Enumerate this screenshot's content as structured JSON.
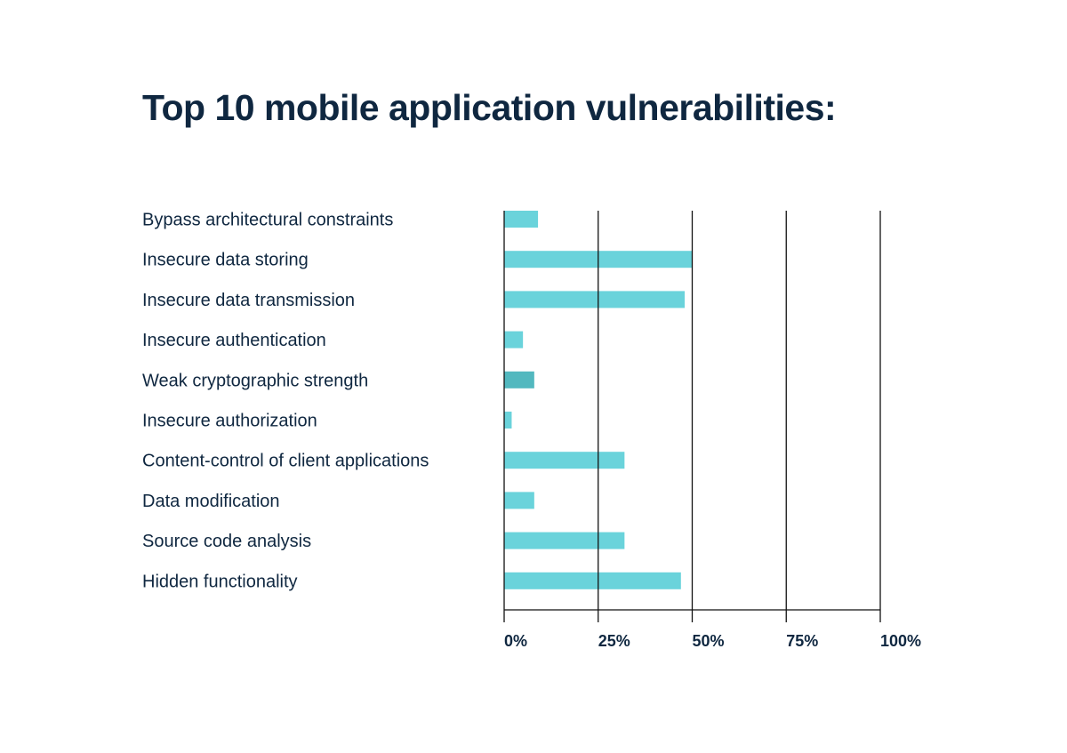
{
  "chart_data": {
    "type": "bar",
    "orientation": "horizontal",
    "title": "Top 10 mobile application vulnerabilities:",
    "xlabel": "",
    "ylabel": "",
    "categories": [
      "Bypass architectural constraints",
      "Insecure data storing",
      "Insecure data transmission",
      "Insecure authentication",
      "Weak cryptographic strength",
      "Insecure authorization",
      "Content-control of client applications",
      "Data modification",
      "Source code analysis",
      "Hidden functionality"
    ],
    "values": [
      9,
      50,
      48,
      5,
      8,
      2,
      32,
      8,
      32,
      47
    ],
    "bar_colors": [
      "#6AD3DB",
      "#6AD3DB",
      "#6AD3DB",
      "#6AD3DB",
      "#52B8BF",
      "#6AD3DB",
      "#6AD3DB",
      "#6AD3DB",
      "#6AD3DB",
      "#6AD3DB"
    ],
    "xlim": [
      0,
      100
    ],
    "xticks": [
      0,
      25,
      50,
      75,
      100
    ],
    "xtick_labels": [
      "0%",
      "25%",
      "50%",
      "75%",
      "100%"
    ],
    "grid": true,
    "legend": "none",
    "text_color": "#0f2740"
  }
}
